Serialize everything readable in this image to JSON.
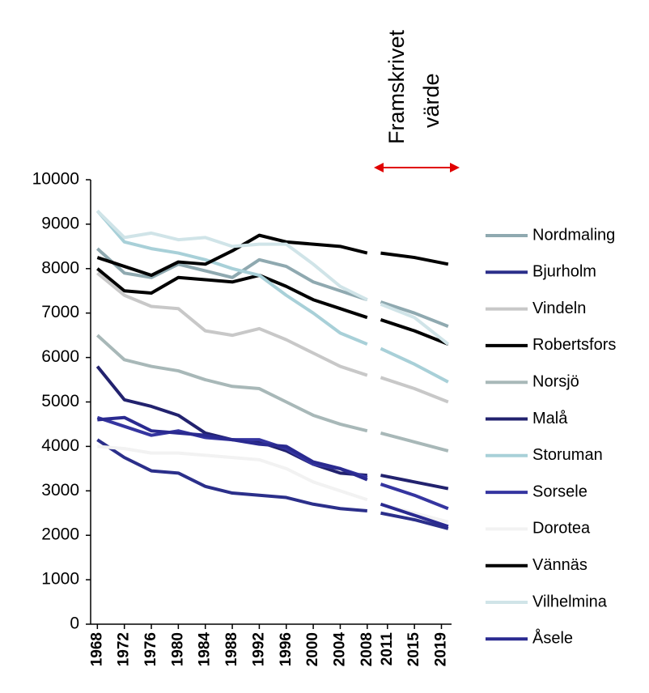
{
  "chart_data": {
    "type": "line",
    "annotation": [
      "Framskrivet",
      "värde"
    ],
    "x": [
      1968,
      1972,
      1976,
      1980,
      1984,
      1988,
      1992,
      1996,
      2000,
      2004,
      2008,
      2009,
      2010,
      2015,
      2020
    ],
    "xlim": [
      1967,
      2020.5
    ],
    "xticks": [
      1968,
      1972,
      1976,
      1980,
      1984,
      1988,
      1992,
      1996,
      2000,
      2004,
      2008,
      2011,
      2015,
      2019
    ],
    "ylim": [
      0,
      10000
    ],
    "yticks": [
      0,
      1000,
      2000,
      3000,
      4000,
      5000,
      6000,
      7000,
      8000,
      9000,
      10000
    ],
    "grid": false,
    "legend": "right",
    "series": [
      {
        "name": "Nordmaling",
        "color": "#8fa9b0",
        "values": [
          8450,
          7900,
          7800,
          8100,
          7950,
          7800,
          8200,
          8050,
          7700,
          7500,
          7300,
          null,
          7250,
          7000,
          6700
        ]
      },
      {
        "name": "Bjurholm",
        "color": "#2b2f8a",
        "values": [
          4150,
          3750,
          3450,
          3400,
          3100,
          2950,
          2900,
          2850,
          2700,
          2600,
          2550,
          null,
          2500,
          2350,
          2150
        ]
      },
      {
        "name": "Vindeln",
        "color": "#c8c8c8",
        "values": [
          7900,
          7400,
          7150,
          7100,
          6600,
          6500,
          6650,
          6400,
          6100,
          5800,
          5600,
          null,
          5550,
          5300,
          5000
        ]
      },
      {
        "name": "Robertsfors",
        "color": "#000000",
        "values": [
          8000,
          7500,
          7450,
          7800,
          7750,
          7700,
          7850,
          7600,
          7300,
          7100,
          6900,
          null,
          6850,
          6600,
          6300
        ]
      },
      {
        "name": "Norsjö",
        "color": "#a8b8b8",
        "values": [
          6500,
          5950,
          5800,
          5700,
          5500,
          5350,
          5300,
          5000,
          4700,
          4500,
          4350,
          null,
          4300,
          4100,
          3900
        ]
      },
      {
        "name": "Malå",
        "color": "#22226e",
        "values": [
          5800,
          5050,
          4900,
          4700,
          4300,
          4150,
          4100,
          3900,
          3600,
          3400,
          3350,
          null,
          3350,
          3200,
          3050
        ]
      },
      {
        "name": "Storuman",
        "color": "#a8d0d8",
        "values": [
          9300,
          8600,
          8450,
          8350,
          8200,
          8000,
          7850,
          7400,
          7000,
          6550,
          6300,
          null,
          6200,
          5850,
          5450
        ]
      },
      {
        "name": "Sorsele",
        "color": "#3535a0",
        "values": [
          4650,
          4450,
          4250,
          4350,
          4200,
          4150,
          4150,
          3950,
          3600,
          3500,
          3300,
          null,
          3150,
          2900,
          2600
        ]
      },
      {
        "name": "Dorotea",
        "color": "#f2f2f2",
        "values": [
          4000,
          3950,
          3850,
          3850,
          3800,
          3750,
          3700,
          3500,
          3200,
          3000,
          2800,
          null,
          2700,
          2500,
          2300
        ]
      },
      {
        "name": "Vännäs",
        "color": "#000000",
        "values": [
          8250,
          8050,
          7850,
          8150,
          8100,
          8400,
          8750,
          8600,
          8550,
          8500,
          8350,
          null,
          8350,
          8250,
          8100
        ]
      },
      {
        "name": "Vilhelmina",
        "color": "#d0e4e8",
        "values": [
          9300,
          8700,
          8800,
          8650,
          8700,
          8500,
          8550,
          8550,
          8100,
          7600,
          7300,
          null,
          7200,
          6900,
          6300
        ]
      },
      {
        "name": "Åsele",
        "color": "#2a2a90",
        "values": [
          4600,
          4650,
          4350,
          4300,
          4250,
          4150,
          4050,
          4000,
          3650,
          3500,
          3250,
          null,
          2700,
          2450,
          2200
        ]
      }
    ]
  }
}
